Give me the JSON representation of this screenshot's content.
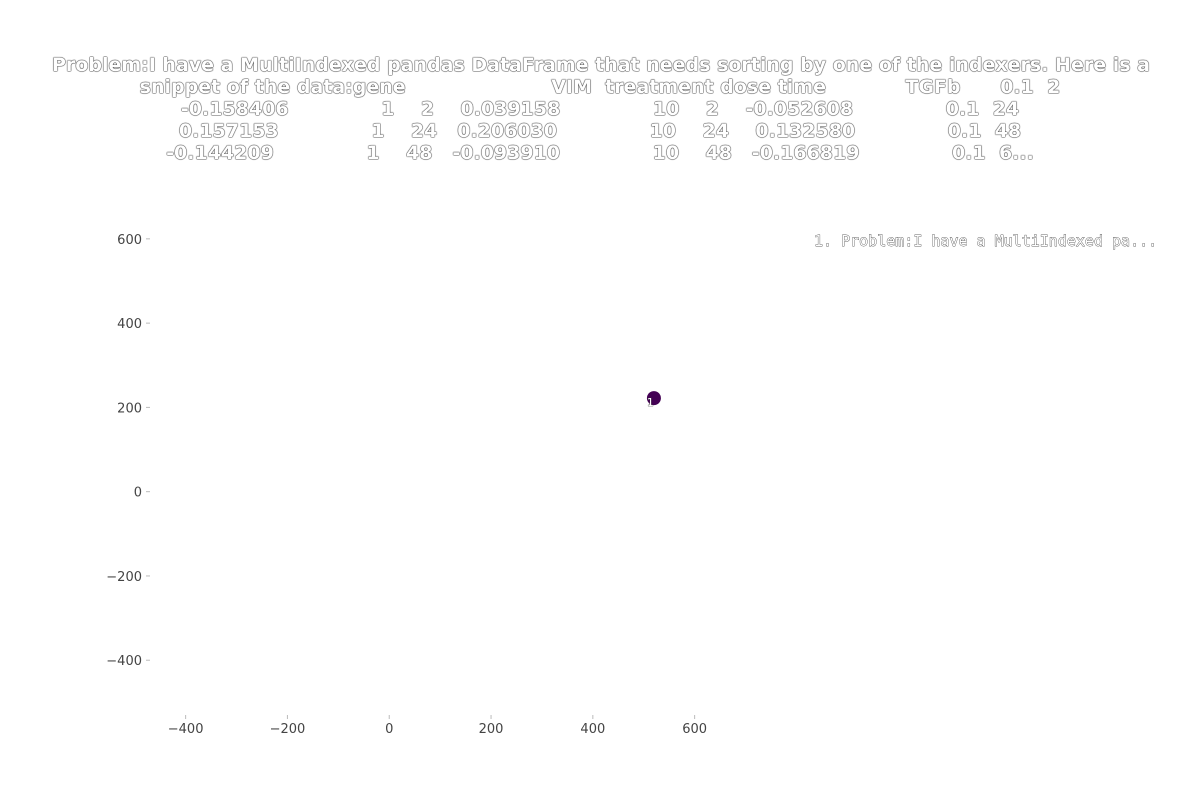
{
  "chart_data": {
    "type": "scatter",
    "title_lines": [
      "Problem:I have a MultiIndexed pandas DataFrame that needs sorting by one of the indexers. Here is a",
      "snippet of the data:gene                      VIM  treatment dose time            TGFb      0.1  2",
      "-0.158406              1    2    0.039158              10    2    -0.052608              0.1  24",
      "0.157153              1    24   0.206030              10    24    0.132580              0.1  48",
      "-0.144209              1    48   -0.093910              10    48   -0.166819              0.1  6..."
    ],
    "x_ticks": [
      "−400",
      "−200",
      "0",
      "200",
      "400",
      "600"
    ],
    "y_ticks": [
      "600",
      "400",
      "200",
      "0",
      "−200",
      "−400"
    ],
    "xlim": [
      -470,
      640
    ],
    "ylim": [
      -530,
      640
    ],
    "points": [
      {
        "x": 520,
        "y": 222,
        "label": "1",
        "color": "#440154"
      }
    ],
    "legend": [
      "1. Problem:I have a MultiIndexed pa..."
    ]
  }
}
